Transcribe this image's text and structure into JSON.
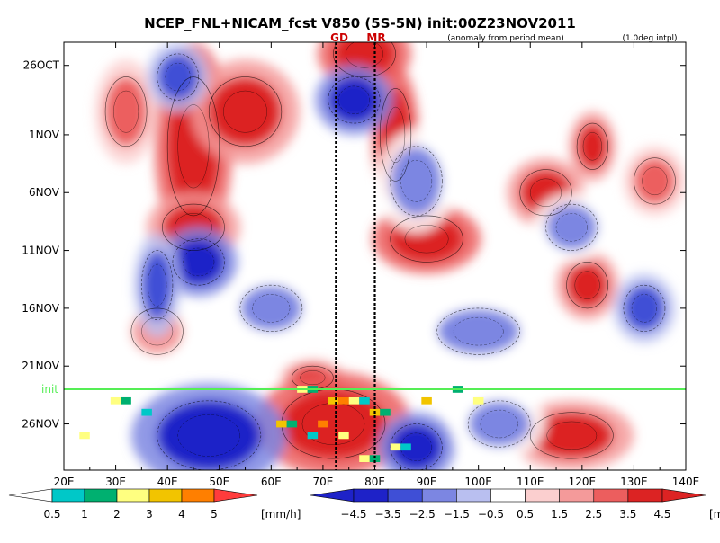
{
  "title": "NCEP_FNL+NICAM_fcst V850 (5S-5N) init:00Z23NOV2011",
  "subtitle_left": "(anomaly from period mean)",
  "subtitle_right": "(1.0deg intpl)",
  "markers": {
    "gd": "GD",
    "mr": "MR",
    "init": "init"
  },
  "colors": {
    "blue4": "#1e22c8",
    "blue3": "#3f4fd6",
    "blue2": "#7c86e2",
    "blue1": "#b9bff0",
    "white": "#ffffff",
    "red1": "#fbcfcf",
    "red2": "#f49a9a",
    "red3": "#ec5e5e",
    "red4": "#dc2323",
    "init_line": "#55ee55",
    "marker_text": "#cc0000",
    "precip_cyan": "#00c8c8",
    "precip_green": "#00b070",
    "precip_yellow": "#ffff80",
    "precip_gold": "#f2c400",
    "precip_orange": "#ff7f00",
    "precip_red": "#ff3c3c"
  },
  "chart_data": {
    "type": "heatmap",
    "x_axis": {
      "range": [
        20,
        140
      ],
      "ticks": [
        {
          "value": 20,
          "label": "20E"
        },
        {
          "value": 30,
          "label": "30E"
        },
        {
          "value": 40,
          "label": "40E"
        },
        {
          "value": 50,
          "label": "50E"
        },
        {
          "value": 60,
          "label": "60E"
        },
        {
          "value": 70,
          "label": "70E"
        },
        {
          "value": 80,
          "label": "80E"
        },
        {
          "value": 90,
          "label": "90E"
        },
        {
          "value": 100,
          "label": "100E"
        },
        {
          "value": 110,
          "label": "110E"
        },
        {
          "value": 120,
          "label": "120E"
        },
        {
          "value": 130,
          "label": "130E"
        },
        {
          "value": 140,
          "label": "140E"
        }
      ]
    },
    "y_axis": {
      "range": [
        "2011-10-24",
        "2011-11-30"
      ],
      "reversed": true,
      "ticks": [
        {
          "value": "2011-10-26",
          "label": "26OCT"
        },
        {
          "value": "2011-11-01",
          "label": "1NOV"
        },
        {
          "value": "2011-11-06",
          "label": "6NOV"
        },
        {
          "value": "2011-11-11",
          "label": "11NOV"
        },
        {
          "value": "2011-11-16",
          "label": "16NOV"
        },
        {
          "value": "2011-11-21",
          "label": "21NOV"
        },
        {
          "value": "2011-11-26",
          "label": "26NOV"
        }
      ]
    },
    "reference_lines": {
      "vertical": [
        {
          "lon": 72.5,
          "label": "GD"
        },
        {
          "lon": 80,
          "label": "MR"
        }
      ],
      "horizontal": [
        {
          "date": "2011-11-23",
          "label": "init"
        }
      ]
    },
    "v850_colorbar": {
      "unit": "[m/s]",
      "levels": [
        -4.5,
        -3.5,
        -2.5,
        -1.5,
        -0.5,
        0.5,
        1.5,
        2.5,
        3.5,
        4.5
      ],
      "labels": [
        "−4.5",
        "−3.5",
        "−2.5",
        "−1.5",
        "−0.5",
        "0.5",
        "1.5",
        "2.5",
        "3.5",
        "4.5"
      ],
      "fill_colors": [
        "#1e22c8",
        "#3f4fd6",
        "#7c86e2",
        "#b9bff0",
        "#ffffff",
        "#fbcfcf",
        "#f49a9a",
        "#ec5e5e",
        "#dc2323"
      ]
    },
    "precip_colorbar": {
      "unit": "[mm/h]",
      "levels": [
        0.5,
        1,
        2,
        3,
        4,
        5
      ],
      "labels": [
        "0.5",
        "1",
        "2",
        "3",
        "4",
        "5"
      ],
      "fill_colors": [
        "#00c8c8",
        "#00b070",
        "#ffff80",
        "#f2c400",
        "#ff7f00"
      ]
    },
    "v850_anomaly_blobs": [
      {
        "lon": 45,
        "date": "2011-11-02",
        "rx": 5,
        "ry": 6,
        "value": 4.5
      },
      {
        "lon": 55,
        "date": "2011-10-30",
        "rx": 7,
        "ry": 3,
        "value": 3.5
      },
      {
        "lon": 78,
        "date": "2011-10-25",
        "rx": 6,
        "ry": 2,
        "value": 4.5
      },
      {
        "lon": 84,
        "date": "2011-11-01",
        "rx": 3,
        "ry": 4,
        "value": 4.5
      },
      {
        "lon": 45,
        "date": "2011-11-09",
        "rx": 6,
        "ry": 2,
        "value": 3.5
      },
      {
        "lon": 90,
        "date": "2011-11-10",
        "rx": 7,
        "ry": 2,
        "value": 4.5
      },
      {
        "lon": 113,
        "date": "2011-11-06",
        "rx": 5,
        "ry": 2,
        "value": 3.5
      },
      {
        "lon": 122,
        "date": "2011-11-02",
        "rx": 3,
        "ry": 2,
        "value": 3.5
      },
      {
        "lon": 121,
        "date": "2011-11-14",
        "rx": 4,
        "ry": 2,
        "value": 3.5
      },
      {
        "lon": 134,
        "date": "2011-11-05",
        "rx": 4,
        "ry": 2,
        "value": 2.5
      },
      {
        "lon": 68,
        "date": "2011-11-22",
        "rx": 4,
        "ry": 1,
        "value": 3.5
      },
      {
        "lon": 72,
        "date": "2011-11-26",
        "rx": 10,
        "ry": 3,
        "value": 4.5
      },
      {
        "lon": 118,
        "date": "2011-11-27",
        "rx": 8,
        "ry": 2,
        "value": 3.5
      },
      {
        "lon": 38,
        "date": "2011-11-18",
        "rx": 5,
        "ry": 2,
        "value": 1.5
      },
      {
        "lon": 32,
        "date": "2011-10-30",
        "rx": 4,
        "ry": 3,
        "value": 2.5
      },
      {
        "lon": 42,
        "date": "2011-10-27",
        "rx": 4,
        "ry": 2,
        "value": -3.5
      },
      {
        "lon": 76,
        "date": "2011-10-29",
        "rx": 5,
        "ry": 2,
        "value": -4.5
      },
      {
        "lon": 46,
        "date": "2011-11-12",
        "rx": 5,
        "ry": 2,
        "value": -4.5
      },
      {
        "lon": 38,
        "date": "2011-11-14",
        "rx": 3,
        "ry": 3,
        "value": -3.5
      },
      {
        "lon": 88,
        "date": "2011-11-05",
        "rx": 5,
        "ry": 3,
        "value": -2.5
      },
      {
        "lon": 60,
        "date": "2011-11-16",
        "rx": 6,
        "ry": 2,
        "value": -2.5
      },
      {
        "lon": 100,
        "date": "2011-11-18",
        "rx": 8,
        "ry": 2,
        "value": -2.5
      },
      {
        "lon": 118,
        "date": "2011-11-09",
        "rx": 5,
        "ry": 2,
        "value": -2.5
      },
      {
        "lon": 132,
        "date": "2011-11-16",
        "rx": 4,
        "ry": 2,
        "value": -3.5
      },
      {
        "lon": 48,
        "date": "2011-11-27",
        "rx": 10,
        "ry": 3,
        "value": -4.5
      },
      {
        "lon": 88,
        "date": "2011-11-28",
        "rx": 5,
        "ry": 2,
        "value": -4.5
      },
      {
        "lon": 104,
        "date": "2011-11-26",
        "rx": 6,
        "ry": 2,
        "value": -2.5
      }
    ],
    "precip_pixels": [
      {
        "lon": 66,
        "date": "2011-11-23",
        "value": 2.5
      },
      {
        "lon": 68,
        "date": "2011-11-23",
        "value": 1.5
      },
      {
        "lon": 72,
        "date": "2011-11-24",
        "value": 3.5
      },
      {
        "lon": 74,
        "date": "2011-11-24",
        "value": 4.5
      },
      {
        "lon": 76,
        "date": "2011-11-24",
        "value": 2.5
      },
      {
        "lon": 78,
        "date": "2011-11-24",
        "value": 0.8
      },
      {
        "lon": 80,
        "date": "2011-11-25",
        "value": 3.5
      },
      {
        "lon": 82,
        "date": "2011-11-25",
        "value": 1.5
      },
      {
        "lon": 70,
        "date": "2011-11-26",
        "value": 4.5
      },
      {
        "lon": 68,
        "date": "2011-11-27",
        "value": 0.8
      },
      {
        "lon": 74,
        "date": "2011-11-27",
        "value": 2.5
      },
      {
        "lon": 84,
        "date": "2011-11-28",
        "value": 2.5
      },
      {
        "lon": 86,
        "date": "2011-11-28",
        "value": 0.8
      },
      {
        "lon": 62,
        "date": "2011-11-26",
        "value": 3.5
      },
      {
        "lon": 64,
        "date": "2011-11-26",
        "value": 1.5
      },
      {
        "lon": 30,
        "date": "2011-11-24",
        "value": 2.5
      },
      {
        "lon": 32,
        "date": "2011-11-24",
        "value": 1.5
      },
      {
        "lon": 36,
        "date": "2011-11-25",
        "value": 0.8
      },
      {
        "lon": 24,
        "date": "2011-11-27",
        "value": 2.5
      },
      {
        "lon": 90,
        "date": "2011-11-24",
        "value": 3.5
      },
      {
        "lon": 96,
        "date": "2011-11-23",
        "value": 1.5
      },
      {
        "lon": 100,
        "date": "2011-11-24",
        "value": 2.5
      },
      {
        "lon": 78,
        "date": "2011-11-29",
        "value": 2.5
      },
      {
        "lon": 80,
        "date": "2011-11-29",
        "value": 1.5
      }
    ]
  }
}
